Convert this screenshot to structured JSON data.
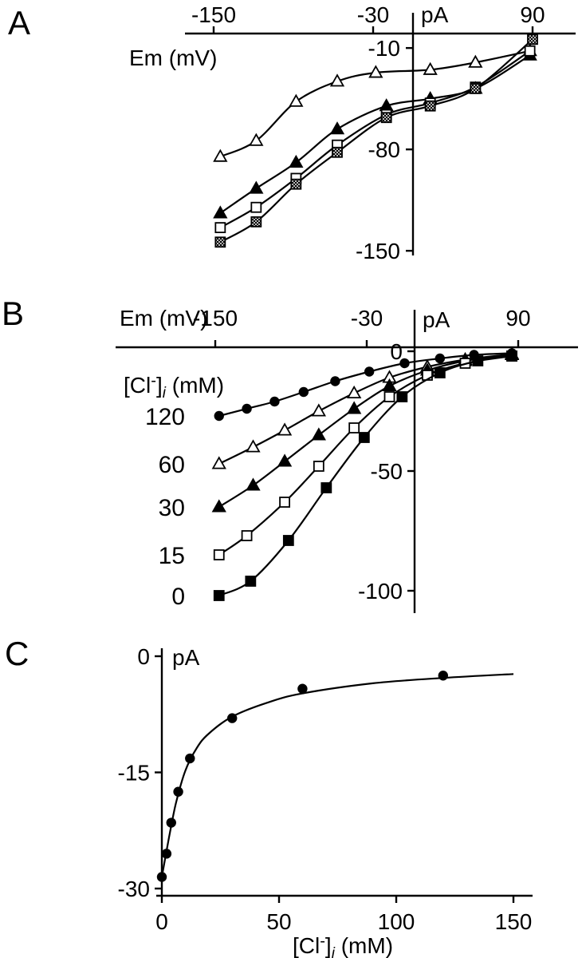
{
  "page": {
    "background": "#ffffff",
    "ink": "#000000"
  },
  "panels": [
    {
      "letter": "A"
    },
    {
      "letter": "B"
    },
    {
      "letter": "C"
    }
  ],
  "cl_label_parts": {
    "base1": "[Cl",
    "sup": "-",
    "base2": "]",
    "sub": "i",
    "base3": " (mM)"
  },
  "chart_data": [
    {
      "type": "scatter",
      "panel": "A",
      "xlabel": "Em (mV)",
      "ylabel": "pA",
      "x_ticks": [
        -150,
        -30,
        90
      ],
      "y_ticks": [
        -10,
        -80,
        -150
      ],
      "xlim": [
        -175,
        105
      ],
      "ylim": [
        -155,
        5
      ],
      "grid": false,
      "legend": "none",
      "series": [
        {
          "name": "open-triangle",
          "marker": "triangle-open",
          "points": [
            [
              -145,
              -85
            ],
            [
              -118,
              -74
            ],
            [
              -88,
              -47
            ],
            [
              -57,
              -33
            ],
            [
              -28,
              -27
            ],
            [
              13,
              -25
            ],
            [
              47,
              -20
            ],
            [
              88,
              -12
            ]
          ]
        },
        {
          "name": "filled-triangle",
          "marker": "triangle-filled",
          "points": [
            [
              -145,
              -124
            ],
            [
              -118,
              -107
            ],
            [
              -88,
              -89
            ],
            [
              -57,
              -66
            ],
            [
              -20,
              -50
            ],
            [
              13,
              -45
            ],
            [
              47,
              -38
            ],
            [
              88,
              -15
            ]
          ]
        },
        {
          "name": "open-square",
          "marker": "square-open",
          "points": [
            [
              -145,
              -134
            ],
            [
              -118,
              -120
            ],
            [
              -88,
              -100
            ],
            [
              -57,
              -77
            ],
            [
              -20,
              -56
            ],
            [
              13,
              -48
            ],
            [
              47,
              -37
            ],
            [
              88,
              -12
            ]
          ]
        },
        {
          "name": "hatched-square",
          "marker": "square-hatched",
          "points": [
            [
              -145,
              -144
            ],
            [
              -118,
              -130
            ],
            [
              -88,
              -104
            ],
            [
              -57,
              -82
            ],
            [
              -20,
              -58
            ],
            [
              13,
              -50
            ],
            [
              47,
              -38
            ],
            [
              90,
              -4
            ]
          ]
        }
      ]
    },
    {
      "type": "scatter",
      "panel": "B",
      "xlabel": "Em (mV)",
      "ylabel": "pA",
      "series_label_header": "[Cl-]i (mM)",
      "x_ticks": [
        -150,
        -30,
        90
      ],
      "y_ticks": [
        0,
        -50,
        -100
      ],
      "xlim": [
        -170,
        110
      ],
      "ylim": [
        -110,
        5
      ],
      "grid": false,
      "legend": "left-of-first-points",
      "series": [
        {
          "name": "cl-120",
          "label": "120",
          "marker": "circle-filled",
          "points": [
            [
              -147,
              -27
            ],
            [
              -125,
              -24
            ],
            [
              -103,
              -21
            ],
            [
              -80,
              -17
            ],
            [
              -55,
              -12.5
            ],
            [
              -28,
              -8.5
            ],
            [
              0,
              -5
            ],
            [
              28,
              -3
            ],
            [
              55,
              -1.5
            ],
            [
              85,
              -0.8
            ]
          ]
        },
        {
          "name": "cl-60",
          "label": "60",
          "marker": "triangle-open",
          "points": [
            [
              -147,
              -47
            ],
            [
              -120,
              -40
            ],
            [
              -95,
              -33
            ],
            [
              -68,
              -25
            ],
            [
              -40,
              -17.5
            ],
            [
              -12,
              -11
            ],
            [
              18,
              -6.5
            ],
            [
              48,
              -3.5
            ],
            [
              85,
              -1.2
            ]
          ]
        },
        {
          "name": "cl-30",
          "label": "30",
          "marker": "triangle-filled",
          "points": [
            [
              -147,
              -65
            ],
            [
              -120,
              -56
            ],
            [
              -95,
              -46
            ],
            [
              -68,
              -35
            ],
            [
              -40,
              -24
            ],
            [
              -12,
              -14.5
            ],
            [
              18,
              -8
            ],
            [
              48,
              -4
            ],
            [
              85,
              -1.5
            ]
          ]
        },
        {
          "name": "cl-15",
          "label": "15",
          "marker": "square-open",
          "points": [
            [
              -147,
              -85
            ],
            [
              -125,
              -77
            ],
            [
              -95,
              -63
            ],
            [
              -68,
              -48
            ],
            [
              -40,
              -32
            ],
            [
              -12,
              -19
            ],
            [
              18,
              -10
            ],
            [
              48,
              -5
            ],
            [
              85,
              -2
            ]
          ]
        },
        {
          "name": "cl-0",
          "label": "0",
          "marker": "square-filled",
          "points": [
            [
              -147,
              -102
            ],
            [
              -122,
              -96
            ],
            [
              -92,
              -79
            ],
            [
              -62,
              -57
            ],
            [
              -32,
              -36
            ],
            [
              -2,
              -19
            ],
            [
              28,
              -9
            ],
            [
              58,
              -4
            ],
            [
              85,
              -2
            ]
          ]
        }
      ]
    },
    {
      "type": "scatter",
      "panel": "C",
      "xlabel": "[Cl-]i (mM)",
      "ylabel": "pA",
      "x_ticks": [
        0,
        50,
        100,
        150
      ],
      "y_ticks": [
        0,
        -15,
        -30
      ],
      "xlim": [
        0,
        155
      ],
      "ylim": [
        -30,
        0
      ],
      "grid": false,
      "legend": "none",
      "series": [
        {
          "name": "current-vs-chloride",
          "marker": "circle-filled",
          "points": [
            [
              0,
              -28.5
            ],
            [
              2,
              -25.5
            ],
            [
              4,
              -21.5
            ],
            [
              7,
              -17.5
            ],
            [
              12,
              -13.2
            ],
            [
              30,
              -8
            ],
            [
              60,
              -4.2
            ],
            [
              120,
              -2.5
            ]
          ],
          "fit_curve": [
            [
              0,
              -28.5
            ],
            [
              3,
              -23.5
            ],
            [
              6,
              -19
            ],
            [
              10,
              -14.8
            ],
            [
              15,
              -11.8
            ],
            [
              20,
              -10
            ],
            [
              30,
              -7.8
            ],
            [
              45,
              -6
            ],
            [
              60,
              -4.8
            ],
            [
              90,
              -3.5
            ],
            [
              120,
              -2.8
            ],
            [
              150,
              -2.3
            ]
          ]
        }
      ]
    }
  ]
}
